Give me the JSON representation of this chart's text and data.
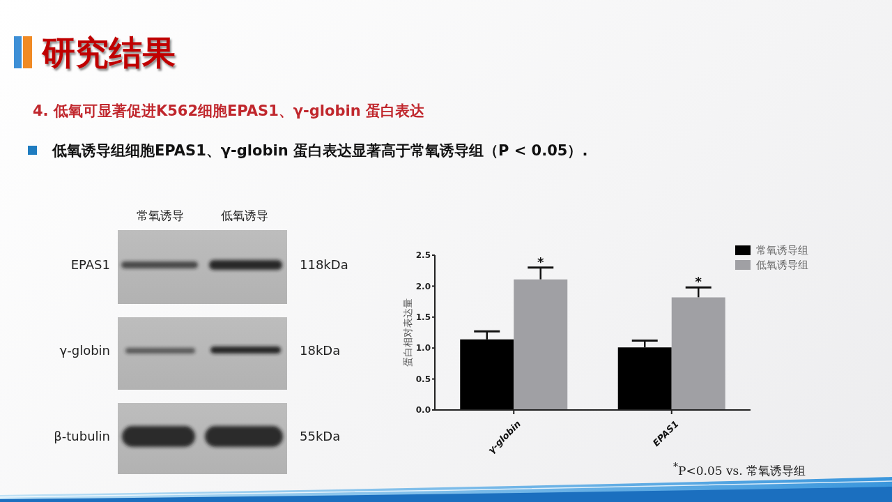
{
  "chart_data": [
    {
      "type": "other",
      "title": "研究结果",
      "subtitle": "4. 低氧可显著促进K562细胞EPAS1、γ-globin 蛋白表达",
      "annotations": [
        "低氧诱导组细胞EPAS1、γ-globin 蛋白表达显著高于常氧诱导组（P < 0.05）."
      ],
      "categories": [
        "常氧诱导",
        "低氧诱导"
      ],
      "y_categories": [
        "EPAS1",
        "γ-globin",
        "β-tubulin"
      ],
      "y2_categories": [
        "118kDa",
        "18kDa",
        "55kDa"
      ]
    },
    {
      "type": "bar",
      "categories": [
        "γ-globin",
        "EPAS1"
      ],
      "series": [
        {
          "name": "常氧诱导组",
          "color": "#000000",
          "values": [
            1.14,
            1.01
          ],
          "errors": [
            [
              1.14,
              1.27
            ],
            [
              1.01,
              1.12
            ]
          ]
        },
        {
          "name": "低氧诱导组",
          "color": "#a0a0a4",
          "values": [
            2.11,
            1.82
          ],
          "errors": [
            [
              2.11,
              2.3
            ],
            [
              1.82,
              1.98
            ]
          ]
        }
      ],
      "ylabel": "蛋白相对表达量",
      "ylim": [
        0,
        2.5
      ],
      "yticks": [
        {
          "value": 0,
          "label": "0.0"
        },
        0.5,
        {
          "value": 1,
          "label": "1.0"
        },
        1.5,
        {
          "value": 2,
          "label": "2.0"
        },
        2.5
      ],
      "legend": "top right",
      "annotations": [
        "*",
        "*",
        "$^{*}$P<0.05 vs. 常氧诱导组"
      ]
    }
  ]
}
